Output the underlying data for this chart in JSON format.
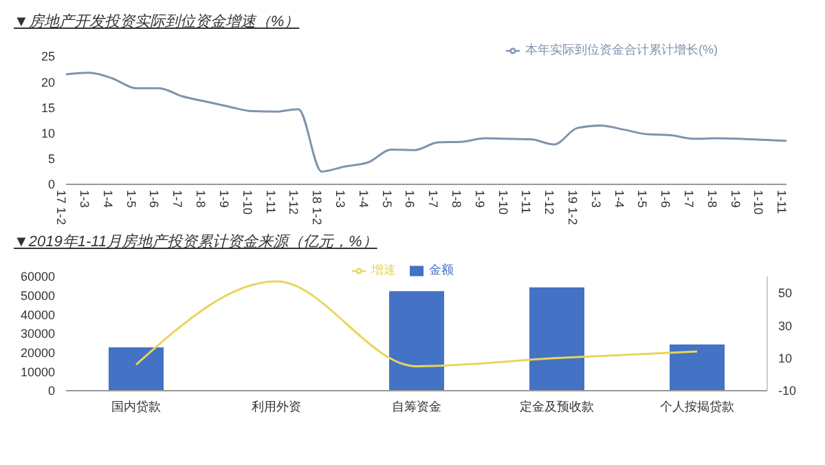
{
  "chart_data": [
    {
      "type": "line",
      "title": "▼房地产开发投资实际到位资金增速（%）",
      "categories": [
        "17 1-2",
        "1-3",
        "1-4",
        "1-5",
        "1-6",
        "1-7",
        "1-8",
        "1-9",
        "1-10",
        "1-11",
        "1-12",
        "18 1-2",
        "1-3",
        "1-4",
        "1-5",
        "1-6",
        "1-7",
        "1-8",
        "1-9",
        "1-10",
        "1-11",
        "1-12",
        "19 1-2",
        "1-3",
        "1-4",
        "1-5",
        "1-6",
        "1-7",
        "1-8",
        "1-9",
        "1-10",
        "1-11"
      ],
      "series": [
        {
          "name": "本年实际到位资金合计累计增长(%)",
          "color": "#7f93ad",
          "values": [
            21.5,
            21.8,
            20.7,
            18.8,
            18.8,
            17.2,
            16.2,
            15.2,
            14.3,
            14.2,
            14.7,
            2.5,
            3.5,
            4.3,
            6.8,
            6.7,
            8.2,
            8.3,
            9.0,
            8.9,
            8.8,
            7.8,
            11.0,
            11.5,
            10.7,
            9.8,
            9.6,
            8.9,
            9.0,
            8.9,
            8.7,
            8.5
          ]
        }
      ],
      "ylim": [
        0,
        25
      ],
      "yticks": [
        0,
        5,
        10,
        15,
        20,
        25
      ],
      "legend": "top right",
      "marker": "none",
      "line_style": "solid"
    },
    {
      "type": "bar",
      "title": "▼2019年1-11月房地产投资累计资金来源（亿元，%）",
      "categories": [
        "国内贷款",
        "利用外资",
        "自筹资金",
        "定金及预收款",
        "个人按揭贷款"
      ],
      "series": [
        {
          "name": "金额",
          "color": "#4472c4",
          "values": [
            22800,
            0,
            52300,
            54300,
            24300
          ]
        },
        {
          "name": "增速",
          "type": "line",
          "axis": "y2",
          "color": "#e8d55a",
          "values": [
            6,
            57,
            5,
            10,
            14
          ]
        }
      ],
      "ylim": [
        0,
        60000
      ],
      "yticks": [
        0,
        10000,
        20000,
        30000,
        40000,
        50000,
        60000
      ],
      "y2lim": [
        -10,
        60
      ],
      "y2ticks": [
        -10,
        10,
        30,
        50
      ],
      "legend": "top",
      "marker": "none"
    }
  ]
}
